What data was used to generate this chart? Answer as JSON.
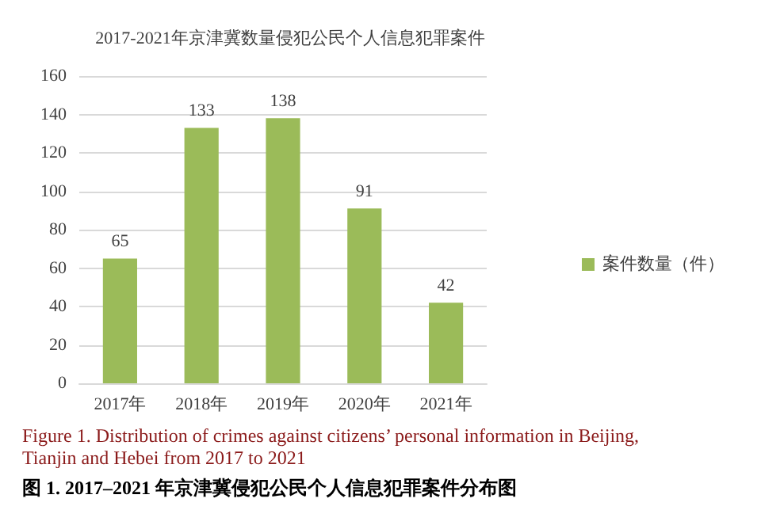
{
  "chart_data": {
    "type": "bar",
    "title": "2017-2021年京津冀数量侵犯公民个人信息犯罪案件",
    "categories": [
      "2017年",
      "2018年",
      "2019年",
      "2020年",
      "2021年"
    ],
    "series": [
      {
        "name": "案件数量（件）",
        "color": "#9bbb59",
        "values": [
          65,
          133,
          138,
          91,
          42
        ]
      }
    ],
    "ylim": [
      0,
      160
    ],
    "yticks": [
      0,
      20,
      40,
      60,
      80,
      100,
      120,
      140,
      160
    ],
    "grid": "y",
    "legend": "right",
    "data_labels": true,
    "annotations": [
      "Figure 1. Distribution of crimes against citizens’ personal information in Beijing, Tianjin and Hebei from 2017 to 2021",
      "图 1. 2017–2021 年京津冀侵犯公民个人信息犯罪案件分布图"
    ]
  }
}
